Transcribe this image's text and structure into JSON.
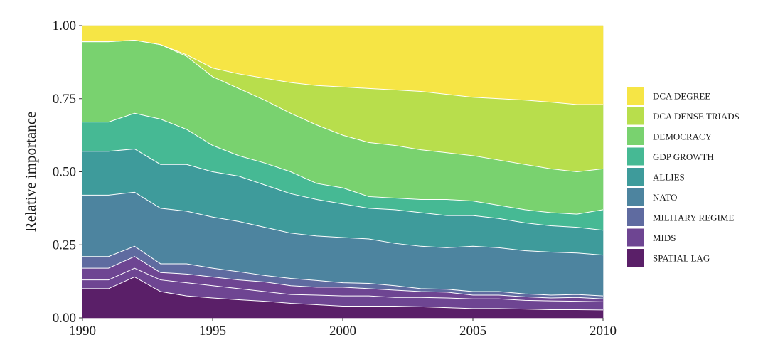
{
  "chart_data": {
    "type": "area",
    "stacked": true,
    "title": "",
    "xlabel": "",
    "ylabel": "Relative importance",
    "xlim": [
      1990,
      2010
    ],
    "ylim": [
      0,
      1
    ],
    "x_ticks": [
      1990,
      1995,
      2000,
      2005,
      2010
    ],
    "y_ticks": [
      0,
      0.25,
      0.5,
      0.75,
      1
    ],
    "x_tick_labels": [
      "1990",
      "1995",
      "2000",
      "2005",
      "2010"
    ],
    "y_tick_labels": [
      "0.00",
      "0.25",
      "0.50",
      "0.75",
      "1.00"
    ],
    "grid": true,
    "legend_position": "right",
    "x": [
      1990,
      1991,
      1992,
      1993,
      1994,
      1995,
      1996,
      1997,
      1998,
      1999,
      2000,
      2001,
      2002,
      2003,
      2004,
      2005,
      2006,
      2007,
      2008,
      2009,
      2010
    ],
    "cumulative_tops": [
      [
        0.1,
        0.1,
        0.14,
        0.09,
        0.075,
        0.068,
        0.062,
        0.057,
        0.05,
        0.045,
        0.04,
        0.04,
        0.04,
        0.038,
        0.035,
        0.032,
        0.032,
        0.03,
        0.028,
        0.028,
        0.027
      ],
      [
        0.13,
        0.13,
        0.17,
        0.13,
        0.12,
        0.11,
        0.1,
        0.09,
        0.08,
        0.078,
        0.075,
        0.075,
        0.07,
        0.07,
        0.068,
        0.065,
        0.065,
        0.06,
        0.058,
        0.057,
        0.055
      ],
      [
        0.17,
        0.17,
        0.21,
        0.155,
        0.15,
        0.14,
        0.13,
        0.123,
        0.11,
        0.105,
        0.105,
        0.1,
        0.095,
        0.09,
        0.088,
        0.078,
        0.078,
        0.072,
        0.068,
        0.07,
        0.065
      ],
      [
        0.21,
        0.21,
        0.245,
        0.185,
        0.185,
        0.17,
        0.158,
        0.145,
        0.135,
        0.128,
        0.12,
        0.118,
        0.11,
        0.1,
        0.098,
        0.09,
        0.09,
        0.082,
        0.078,
        0.08,
        0.075
      ],
      [
        0.42,
        0.42,
        0.43,
        0.375,
        0.365,
        0.345,
        0.33,
        0.31,
        0.29,
        0.28,
        0.275,
        0.27,
        0.255,
        0.245,
        0.24,
        0.245,
        0.24,
        0.23,
        0.225,
        0.222,
        0.215
      ],
      [
        0.57,
        0.57,
        0.578,
        0.525,
        0.525,
        0.5,
        0.485,
        0.455,
        0.425,
        0.405,
        0.39,
        0.375,
        0.37,
        0.36,
        0.35,
        0.35,
        0.34,
        0.325,
        0.315,
        0.31,
        0.3
      ],
      [
        0.67,
        0.67,
        0.7,
        0.68,
        0.645,
        0.59,
        0.555,
        0.53,
        0.5,
        0.46,
        0.445,
        0.415,
        0.41,
        0.405,
        0.405,
        0.4,
        0.385,
        0.37,
        0.36,
        0.355,
        0.37
      ],
      [
        0.945,
        0.945,
        0.95,
        0.935,
        0.895,
        0.825,
        0.785,
        0.745,
        0.7,
        0.66,
        0.625,
        0.6,
        0.59,
        0.575,
        0.565,
        0.555,
        0.54,
        0.525,
        0.51,
        0.5,
        0.51
      ],
      [
        0.945,
        0.945,
        0.95,
        0.935,
        0.9,
        0.855,
        0.835,
        0.82,
        0.805,
        0.795,
        0.79,
        0.785,
        0.78,
        0.775,
        0.765,
        0.755,
        0.75,
        0.745,
        0.738,
        0.73,
        0.73
      ],
      [
        1,
        1,
        1,
        1,
        1,
        1,
        1,
        1,
        1,
        1,
        1,
        1,
        1,
        1,
        1,
        1,
        1,
        1,
        1,
        1,
        1
      ]
    ],
    "series": [
      {
        "name": "SPATIAL LAG",
        "color": "#5a1f68"
      },
      {
        "name": "MIDS",
        "color": "#6e4592"
      },
      {
        "name": "MILITARY REGIME",
        "color": "#6e4592"
      },
      {
        "name": "MILITARY REGIME",
        "color": "#5f6ba0"
      },
      {
        "name": "NATO",
        "color": "#4d849f"
      },
      {
        "name": "ALLIES",
        "color": "#3e9b9b"
      },
      {
        "name": "GDP GROWTH",
        "color": "#46b994"
      },
      {
        "name": "DEMOCRACY",
        "color": "#79d26f"
      },
      {
        "name": "DCA DENSE TRIADS",
        "color": "#b8de4c"
      },
      {
        "name": "DCA DEGREE",
        "color": "#f6e545"
      }
    ],
    "legend": [
      {
        "label": "DCA DEGREE",
        "color": "#f6e545"
      },
      {
        "label": "DCA DENSE TRIADS",
        "color": "#b8de4c"
      },
      {
        "label": "DEMOCRACY",
        "color": "#79d26f"
      },
      {
        "label": "GDP GROWTH",
        "color": "#46b994"
      },
      {
        "label": "ALLIES",
        "color": "#3e9b9b"
      },
      {
        "label": "NATO",
        "color": "#4d849f"
      },
      {
        "label": "MILITARY REGIME",
        "color": "#5f6ba0"
      },
      {
        "label": "MIDS",
        "color": "#6e4592"
      },
      {
        "label": "SPATIAL LAG",
        "color": "#5a1f68"
      }
    ],
    "colors": {
      "grid": "#e6e6e6",
      "boundary": "#ffffff",
      "axis": "#333333"
    }
  }
}
